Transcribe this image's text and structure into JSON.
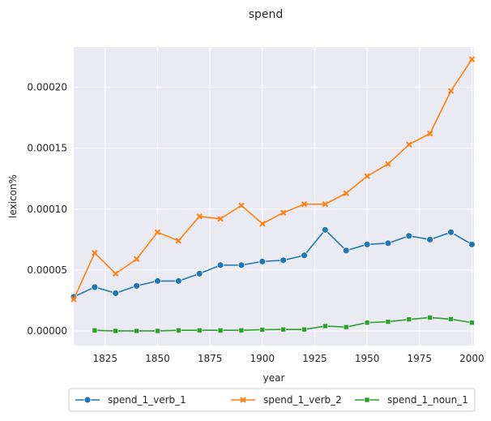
{
  "chart_data": {
    "type": "line",
    "title": "spend",
    "xlabel": "year",
    "ylabel": "lexicon%",
    "xlim": [
      1810,
      2001
    ],
    "ylim": [
      -1.2e-05,
      0.000233
    ],
    "x_ticks": [
      1825,
      1850,
      1875,
      1900,
      1925,
      1950,
      1975,
      2000
    ],
    "x_tick_labels": [
      "1825",
      "1850",
      "1875",
      "1900",
      "1925",
      "1950",
      "1975",
      "2000"
    ],
    "y_ticks": [
      0,
      5e-05,
      0.0001,
      0.00015,
      0.0002
    ],
    "y_tick_labels": [
      "0.00000",
      "0.00005",
      "0.00010",
      "0.00015",
      "0.00020"
    ],
    "grid": true,
    "legend_position": "bottom-center",
    "series": [
      {
        "name": "spend_1_verb_1",
        "color": "#1f77b4",
        "marker": "circle",
        "x": [
          1810,
          1820,
          1830,
          1840,
          1850,
          1860,
          1870,
          1880,
          1890,
          1900,
          1910,
          1920,
          1930,
          1940,
          1950,
          1960,
          1970,
          1980,
          1990,
          2000
        ],
        "y": [
          2.8e-05,
          3.6e-05,
          3.1e-05,
          3.7e-05,
          4.1e-05,
          4.1e-05,
          4.7e-05,
          5.4e-05,
          5.4e-05,
          5.7e-05,
          5.8e-05,
          6.2e-05,
          8.3e-05,
          6.6e-05,
          7.1e-05,
          7.2e-05,
          7.8e-05,
          7.5e-05,
          8.1e-05,
          7.1e-05
        ]
      },
      {
        "name": "spend_1_verb_2",
        "color": "#ff7f0e",
        "marker": "x",
        "x": [
          1810,
          1820,
          1830,
          1840,
          1850,
          1860,
          1870,
          1880,
          1890,
          1900,
          1910,
          1920,
          1930,
          1940,
          1950,
          1960,
          1970,
          1980,
          1990,
          2000
        ],
        "y": [
          2.6e-05,
          6.4e-05,
          4.7e-05,
          5.9e-05,
          8.1e-05,
          7.4e-05,
          9.4e-05,
          9.2e-05,
          0.000103,
          8.8e-05,
          9.7e-05,
          0.000104,
          0.000104,
          0.000113,
          0.000127,
          0.000137,
          0.000153,
          0.000162,
          0.000197,
          0.000223
        ]
      },
      {
        "name": "spend_1_noun_1",
        "color": "#2ca02c",
        "marker": "square",
        "x": [
          1820,
          1830,
          1840,
          1850,
          1860,
          1870,
          1880,
          1890,
          1900,
          1910,
          1920,
          1930,
          1940,
          1950,
          1960,
          1970,
          1980,
          1990,
          2000
        ],
        "y": [
          5e-07,
          0.0,
          0.0,
          0.0,
          5e-07,
          5e-07,
          5e-07,
          5e-07,
          1e-06,
          1.2e-06,
          1.2e-06,
          4e-06,
          3.2e-06,
          6.8e-06,
          7.5e-06,
          9.5e-06,
          1.1e-05,
          9.7e-06,
          6.8e-06
        ]
      }
    ]
  }
}
